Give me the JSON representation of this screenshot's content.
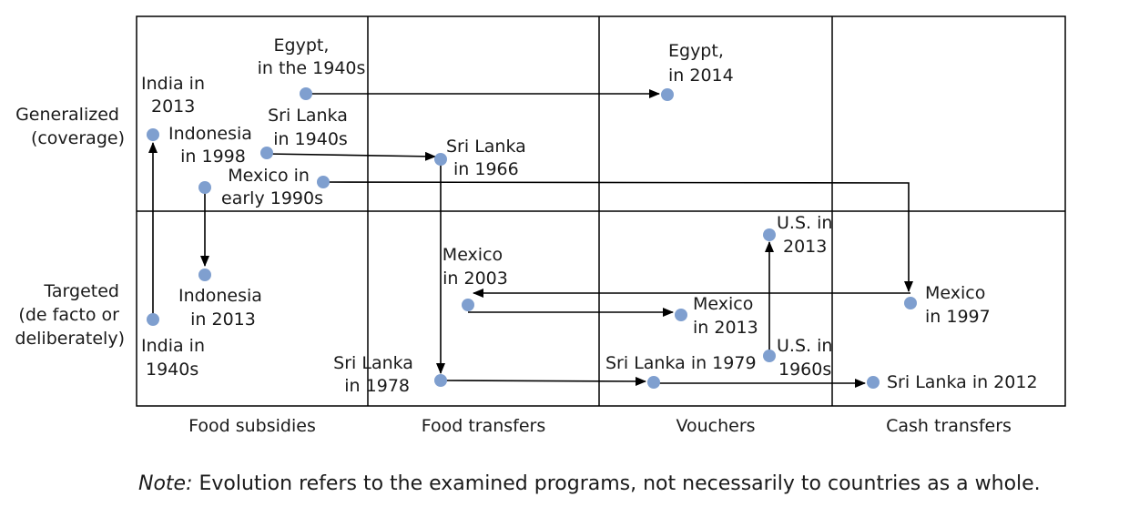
{
  "rows": {
    "generalized": [
      "Generalized",
      "(coverage)"
    ],
    "targeted": [
      "Targeted",
      "(de facto or",
      "deliberately)"
    ]
  },
  "columns": [
    "Food subsidies",
    "Food transfers",
    "Vouchers",
    "Cash transfers"
  ],
  "points": {
    "egypt_1940s": [
      "Egypt,",
      "in the 1940s"
    ],
    "egypt_2014": [
      "Egypt,",
      "in 2014"
    ],
    "india_2013": [
      "India in",
      "2013"
    ],
    "india_1940s": [
      "India in",
      "1940s"
    ],
    "indonesia_1998": [
      "Indonesia",
      "in 1998"
    ],
    "indonesia_2013": [
      "Indonesia",
      "in 2013"
    ],
    "srilanka_1940s": [
      "Sri Lanka",
      "in 1940s"
    ],
    "srilanka_1966": [
      "Sri Lanka",
      "in 1966"
    ],
    "mexico_early1990s": [
      "Mexico in",
      "early 1990s"
    ],
    "mexico_2003": [
      "Mexico",
      "in 2003"
    ],
    "mexico_2013": [
      "Mexico",
      "in 2013"
    ],
    "mexico_1997": [
      "Mexico",
      "in 1997"
    ],
    "us_2013": [
      "U.S. in",
      "2013"
    ],
    "us_1960s": [
      "U.S. in",
      "1960s"
    ],
    "srilanka_1978": [
      "Sri Lanka",
      "in 1978"
    ],
    "srilanka_1979": [
      "Sri Lanka in 1979"
    ],
    "srilanka_2012": [
      "Sri Lanka in 2012"
    ]
  },
  "note": {
    "prefix": "Note:",
    "text": " Evolution refers to the examined programs, not necessarily to countries as a whole."
  },
  "colors": {
    "dot": "#7f9fcf",
    "line": "#000000"
  }
}
